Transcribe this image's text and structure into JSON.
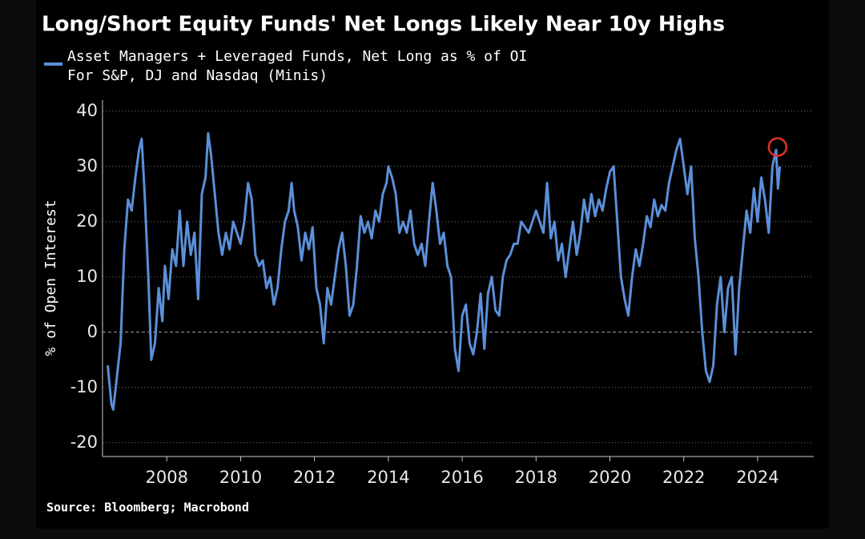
{
  "chart_data": {
    "type": "line",
    "title": "Long/Short Equity Funds' Net Longs Likely Near 10y Highs",
    "subtitle": "For S&P, DJ and Nasdaq (Minis)",
    "ylabel": "% of Open Interest",
    "source": "Source: Bloomberg; Macrobond",
    "xlim": [
      2006.26,
      2025.52
    ],
    "ylim": [
      -22.5,
      42
    ],
    "xticks": [
      2008,
      2010,
      2012,
      2014,
      2016,
      2018,
      2020,
      2022,
      2024
    ],
    "yticks": [
      -20,
      -10,
      0,
      10,
      20,
      30,
      40
    ],
    "grid": true,
    "highlight": {
      "x": 2024.54,
      "y": 33.5,
      "color": "#e0302a"
    },
    "x": [
      2006.4,
      2006.5,
      2006.55,
      2006.65,
      2006.75,
      2006.85,
      2006.95,
      2007.05,
      2007.15,
      2007.25,
      2007.32,
      2007.4,
      2007.5,
      2007.58,
      2007.68,
      2007.78,
      2007.88,
      2007.95,
      2008.05,
      2008.15,
      2008.25,
      2008.35,
      2008.45,
      2008.55,
      2008.65,
      2008.75,
      2008.85,
      2008.95,
      2009.05,
      2009.12,
      2009.2,
      2009.3,
      2009.4,
      2009.5,
      2009.6,
      2009.7,
      2009.8,
      2009.9,
      2010.0,
      2010.1,
      2010.2,
      2010.3,
      2010.4,
      2010.5,
      2010.6,
      2010.7,
      2010.8,
      2010.9,
      2011.0,
      2011.1,
      2011.2,
      2011.3,
      2011.38,
      2011.45,
      2011.55,
      2011.65,
      2011.75,
      2011.85,
      2011.95,
      2012.05,
      2012.15,
      2012.25,
      2012.35,
      2012.45,
      2012.55,
      2012.65,
      2012.75,
      2012.85,
      2012.95,
      2013.05,
      2013.15,
      2013.25,
      2013.35,
      2013.45,
      2013.55,
      2013.65,
      2013.75,
      2013.85,
      2013.95,
      2014.0,
      2014.1,
      2014.2,
      2014.3,
      2014.4,
      2014.5,
      2014.6,
      2014.7,
      2014.8,
      2014.9,
      2015.0,
      2015.1,
      2015.2,
      2015.3,
      2015.4,
      2015.5,
      2015.6,
      2015.7,
      2015.8,
      2015.9,
      2016.0,
      2016.1,
      2016.2,
      2016.3,
      2016.4,
      2016.5,
      2016.6,
      2016.7,
      2016.8,
      2016.9,
      2017.0,
      2017.1,
      2017.2,
      2017.3,
      2017.4,
      2017.5,
      2017.6,
      2017.7,
      2017.8,
      2017.9,
      2018.0,
      2018.1,
      2018.2,
      2018.3,
      2018.4,
      2018.5,
      2018.6,
      2018.7,
      2018.8,
      2018.9,
      2019.0,
      2019.1,
      2019.2,
      2019.3,
      2019.4,
      2019.5,
      2019.6,
      2019.7,
      2019.8,
      2019.9,
      2020.0,
      2020.1,
      2020.2,
      2020.3,
      2020.4,
      2020.5,
      2020.6,
      2020.7,
      2020.8,
      2020.9,
      2021.0,
      2021.1,
      2021.2,
      2021.3,
      2021.4,
      2021.5,
      2021.6,
      2021.7,
      2021.8,
      2021.9,
      2022.0,
      2022.1,
      2022.2,
      2022.3,
      2022.4,
      2022.5,
      2022.6,
      2022.7,
      2022.8,
      2022.9,
      2023.0,
      2023.1,
      2023.2,
      2023.3,
      2023.4,
      2023.5,
      2023.6,
      2023.7,
      2023.8,
      2023.9,
      2024.0,
      2024.1,
      2024.2,
      2024.3,
      2024.4,
      2024.5,
      2024.55,
      2024.6
    ],
    "series": [
      {
        "name": "Asset Managers + Leveraged Funds, Net Long as % of OI",
        "color": "#5b8fd8",
        "values": [
          -6,
          -13,
          -14,
          -8,
          -2,
          15,
          24,
          22,
          28,
          33,
          35,
          25,
          10,
          -5,
          -2,
          8,
          2,
          12,
          6,
          15,
          12,
          22,
          12,
          20,
          14,
          18,
          6,
          25,
          28,
          36,
          32,
          25,
          18,
          14,
          18,
          15,
          20,
          18,
          16,
          20,
          27,
          24,
          14,
          12,
          13,
          8,
          10,
          5,
          8,
          15,
          20,
          22,
          27,
          22,
          19,
          13,
          18,
          15,
          19,
          8,
          5,
          -2,
          8,
          5,
          10,
          15,
          18,
          12,
          3,
          5,
          12,
          21,
          18,
          20,
          17,
          22,
          20,
          25,
          27,
          30,
          28,
          25,
          18,
          20,
          18,
          22,
          16,
          14,
          16,
          12,
          20,
          27,
          22,
          16,
          18,
          12,
          10,
          -3,
          -7,
          3,
          5,
          -2,
          -4,
          0,
          7,
          -3,
          7,
          10,
          4,
          3,
          10,
          13,
          14,
          16,
          16,
          20,
          19,
          18,
          20,
          22,
          20,
          18,
          27,
          17,
          20,
          13,
          16,
          10,
          15,
          20,
          14,
          18,
          24,
          20,
          25,
          21,
          24,
          22,
          26,
          29,
          30,
          20,
          10,
          6,
          3,
          10,
          15,
          12,
          16,
          21,
          19,
          24,
          21,
          23,
          22,
          27,
          30,
          33,
          35,
          30,
          25,
          30,
          17,
          10,
          0,
          -7,
          -9,
          -6,
          5,
          10,
          0,
          8,
          10,
          -4,
          8,
          15,
          22,
          18,
          26,
          20,
          28,
          24,
          18,
          30,
          33,
          26,
          30
        ]
      }
    ]
  }
}
